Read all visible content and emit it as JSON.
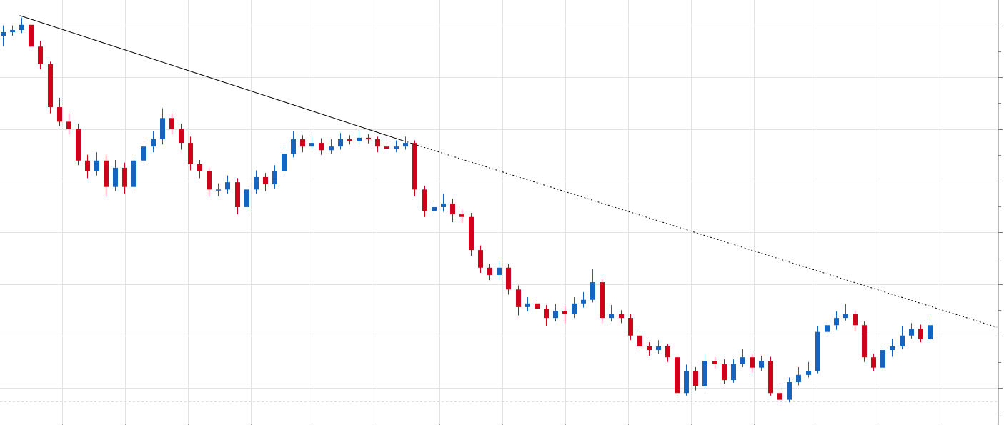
{
  "chart_data": {
    "type": "candlestick",
    "up_color": "#1565c0",
    "down_color": "#d0021b",
    "grid": true,
    "xlim": [
      -0.31,
      106.34
    ],
    "xticks": [
      6.34,
      13.05,
      19.77,
      26.49,
      33.2,
      39.92,
      46.64,
      53.36,
      60.08,
      66.79,
      73.51,
      80.23,
      86.95,
      93.66,
      100.38
    ],
    "ylim": [
      -0.69,
      7.49
    ],
    "yticks": [
      0,
      1,
      2,
      3,
      4,
      5,
      6,
      7
    ],
    "minor_yticks": [
      -0.5,
      0.5,
      1.5,
      2.5,
      3.5,
      4.5,
      5.5,
      6.5
    ],
    "reference_line": -0.26,
    "trendline": {
      "x": [
        1.8,
        42.8,
        106.2
      ],
      "y": [
        7.19,
        4.77,
        1.17
      ]
    },
    "candles": [
      [
        6.8,
        7.0,
        6.6,
        6.87
      ],
      [
        6.87,
        7.0,
        6.8,
        6.91
      ],
      [
        6.91,
        7.15,
        6.85,
        7.01
      ],
      [
        7.01,
        7.05,
        6.5,
        6.59
      ],
      [
        6.59,
        6.7,
        6.15,
        6.25
      ],
      [
        6.25,
        6.3,
        5.3,
        5.42
      ],
      [
        5.42,
        5.6,
        5.05,
        5.14
      ],
      [
        5.14,
        5.3,
        4.9,
        5.0
      ],
      [
        5.0,
        5.1,
        4.3,
        4.39
      ],
      [
        4.39,
        4.5,
        4.05,
        4.18
      ],
      [
        4.18,
        4.55,
        4.1,
        4.39
      ],
      [
        4.39,
        4.5,
        3.7,
        3.88
      ],
      [
        3.88,
        4.4,
        3.8,
        4.25
      ],
      [
        4.25,
        4.35,
        3.75,
        3.88
      ],
      [
        3.88,
        4.5,
        3.8,
        4.39
      ],
      [
        4.39,
        4.8,
        4.3,
        4.66
      ],
      [
        4.66,
        4.95,
        4.55,
        4.8
      ],
      [
        4.8,
        5.4,
        4.7,
        5.21
      ],
      [
        5.21,
        5.3,
        4.9,
        5.0
      ],
      [
        5.0,
        5.1,
        4.6,
        4.73
      ],
      [
        4.73,
        4.85,
        4.2,
        4.32
      ],
      [
        4.32,
        4.4,
        4.05,
        4.18
      ],
      [
        4.18,
        4.25,
        3.7,
        3.83
      ],
      [
        3.83,
        3.95,
        3.7,
        3.83
      ],
      [
        3.83,
        4.1,
        3.75,
        3.97
      ],
      [
        3.97,
        4.05,
        3.35,
        3.49
      ],
      [
        3.49,
        3.95,
        3.4,
        3.83
      ],
      [
        3.83,
        4.2,
        3.75,
        4.07
      ],
      [
        4.07,
        4.15,
        3.8,
        3.93
      ],
      [
        3.93,
        4.3,
        3.85,
        4.18
      ],
      [
        4.18,
        4.65,
        4.1,
        4.52
      ],
      [
        4.52,
        4.95,
        4.45,
        4.8
      ],
      [
        4.8,
        4.88,
        4.55,
        4.66
      ],
      [
        4.66,
        4.85,
        4.6,
        4.73
      ],
      [
        4.73,
        4.82,
        4.5,
        4.59
      ],
      [
        4.59,
        4.8,
        4.52,
        4.66
      ],
      [
        4.66,
        4.92,
        4.6,
        4.8
      ],
      [
        4.8,
        4.88,
        4.7,
        4.76
      ],
      [
        4.76,
        4.98,
        4.7,
        4.83
      ],
      [
        4.83,
        4.9,
        4.72,
        4.8
      ],
      [
        4.8,
        4.85,
        4.55,
        4.66
      ],
      [
        4.66,
        4.75,
        4.52,
        4.62
      ],
      [
        4.62,
        4.78,
        4.55,
        4.66
      ],
      [
        4.66,
        4.85,
        4.6,
        4.73
      ],
      [
        4.73,
        4.78,
        3.7,
        3.83
      ],
      [
        3.83,
        3.9,
        3.3,
        3.42
      ],
      [
        3.42,
        3.6,
        3.35,
        3.49
      ],
      [
        3.49,
        3.75,
        3.4,
        3.56
      ],
      [
        3.56,
        3.65,
        3.2,
        3.35
      ],
      [
        3.35,
        3.45,
        3.2,
        3.3
      ],
      [
        3.3,
        3.38,
        2.55,
        2.66
      ],
      [
        2.66,
        2.75,
        2.22,
        2.32
      ],
      [
        2.32,
        2.4,
        2.08,
        2.18
      ],
      [
        2.18,
        2.45,
        2.1,
        2.32
      ],
      [
        2.32,
        2.4,
        1.8,
        1.9
      ],
      [
        1.9,
        1.98,
        1.4,
        1.56
      ],
      [
        1.56,
        1.75,
        1.48,
        1.63
      ],
      [
        1.63,
        1.7,
        1.42,
        1.53
      ],
      [
        1.53,
        1.6,
        1.2,
        1.35
      ],
      [
        1.35,
        1.62,
        1.28,
        1.49
      ],
      [
        1.49,
        1.58,
        1.25,
        1.42
      ],
      [
        1.42,
        1.75,
        1.35,
        1.63
      ],
      [
        1.63,
        1.85,
        1.55,
        1.7
      ],
      [
        1.7,
        2.3,
        1.65,
        2.04
      ],
      [
        2.04,
        2.1,
        1.25,
        1.35
      ],
      [
        1.35,
        1.6,
        1.28,
        1.42
      ],
      [
        1.42,
        1.5,
        1.25,
        1.35
      ],
      [
        1.35,
        1.42,
        0.92,
        1.01
      ],
      [
        1.01,
        1.1,
        0.7,
        0.8
      ],
      [
        0.8,
        0.88,
        0.62,
        0.73
      ],
      [
        0.73,
        0.92,
        0.66,
        0.8
      ],
      [
        0.8,
        0.85,
        0.5,
        0.59
      ],
      [
        0.59,
        0.65,
        -0.15,
        -0.1
      ],
      [
        -0.1,
        0.45,
        -0.15,
        0.32
      ],
      [
        0.32,
        0.4,
        -0.05,
        0.04
      ],
      [
        0.04,
        0.65,
        -0.02,
        0.52
      ],
      [
        0.52,
        0.6,
        0.38,
        0.46
      ],
      [
        0.46,
        0.55,
        0.08,
        0.15
      ],
      [
        0.15,
        0.55,
        0.1,
        0.46
      ],
      [
        0.46,
        0.75,
        0.4,
        0.59
      ],
      [
        0.59,
        0.66,
        0.3,
        0.39
      ],
      [
        0.39,
        0.62,
        0.32,
        0.52
      ],
      [
        0.52,
        0.6,
        -0.15,
        -0.1
      ],
      [
        -0.1,
        0.0,
        -0.32,
        -0.23
      ],
      [
        -0.23,
        0.2,
        -0.28,
        0.11
      ],
      [
        0.11,
        0.4,
        0.05,
        0.25
      ],
      [
        0.25,
        0.5,
        0.2,
        0.32
      ],
      [
        0.32,
        1.2,
        0.28,
        1.08
      ],
      [
        1.08,
        1.3,
        1.0,
        1.21
      ],
      [
        1.21,
        1.48,
        1.12,
        1.35
      ],
      [
        1.35,
        1.62,
        1.3,
        1.42
      ],
      [
        1.42,
        1.5,
        1.1,
        1.21
      ],
      [
        1.21,
        1.28,
        0.5,
        0.59
      ],
      [
        0.59,
        0.66,
        0.32,
        0.39
      ],
      [
        0.39,
        0.85,
        0.33,
        0.73
      ],
      [
        0.73,
        0.95,
        0.6,
        0.8
      ],
      [
        0.8,
        1.2,
        0.75,
        1.01
      ],
      [
        1.01,
        1.25,
        0.95,
        1.14
      ],
      [
        1.14,
        1.22,
        0.88,
        0.94
      ],
      [
        0.94,
        1.35,
        0.9,
        1.21
      ]
    ]
  }
}
